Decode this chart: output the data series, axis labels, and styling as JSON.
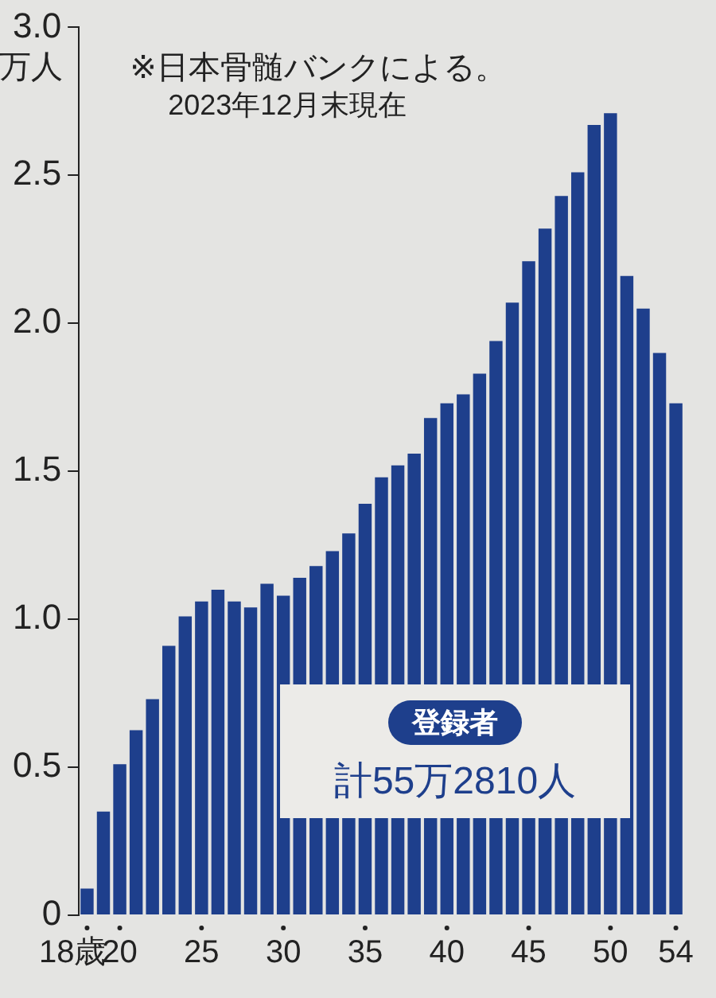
{
  "chart_data": {
    "type": "bar",
    "ylabel": "万人",
    "categories": [
      "18歳",
      null,
      "20",
      null,
      null,
      null,
      null,
      "25",
      null,
      null,
      null,
      null,
      "30",
      null,
      null,
      null,
      null,
      "35",
      null,
      null,
      null,
      null,
      "40",
      null,
      null,
      null,
      null,
      "45",
      null,
      null,
      null,
      null,
      "50",
      null,
      null,
      null,
      "54"
    ],
    "values": [
      0.09,
      0.35,
      0.51,
      0.625,
      0.73,
      0.91,
      1.01,
      1.06,
      1.1,
      1.06,
      1.04,
      1.12,
      1.08,
      1.14,
      1.18,
      1.23,
      1.29,
      1.39,
      1.48,
      1.52,
      1.56,
      1.68,
      1.73,
      1.76,
      1.83,
      1.94,
      2.07,
      2.21,
      2.32,
      2.43,
      2.51,
      2.67,
      2.71,
      2.16,
      2.05,
      1.9,
      1.73
    ],
    "color": "#1e3f8c",
    "ylim": [
      0,
      3
    ],
    "yticks": [
      0,
      0.5,
      {
        "value": 1,
        "label": "1.0"
      },
      1.5,
      {
        "value": 2,
        "label": "2.0"
      },
      2.5,
      {
        "value": 3,
        "label": "3.0"
      }
    ],
    "grid": false,
    "legend": false,
    "annotations": [
      "※日本骨髄バンクによる。",
      "2023年12月末現在",
      "登録者",
      "計55万2810人"
    ]
  }
}
